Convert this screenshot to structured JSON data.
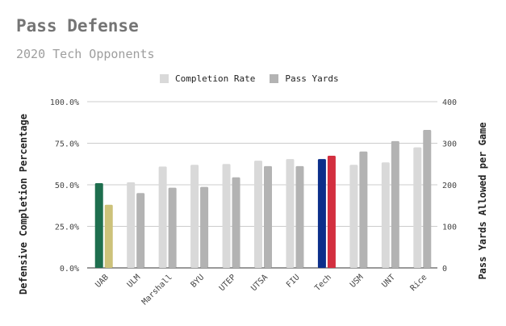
{
  "title": "Pass Defense",
  "subtitle": "2020 Tech Opponents",
  "chart_data": {
    "type": "bar",
    "categories": [
      "UAB",
      "ULM",
      "Marshall",
      "BYU",
      "UTEP",
      "UTSA",
      "FIU",
      "Tech",
      "USM",
      "UNT",
      "Rice"
    ],
    "series": [
      {
        "name": "Completion Rate",
        "axis": "left",
        "color": "#d9d9d9",
        "values": [
          0.51,
          0.515,
          0.61,
          0.62,
          0.625,
          0.645,
          0.655,
          0.655,
          0.62,
          0.635,
          0.725
        ]
      },
      {
        "name": "Pass Yards",
        "axis": "right",
        "color": "#b3b3b3",
        "values": [
          152,
          180,
          193,
          195,
          218,
          245,
          245,
          270,
          280,
          305,
          332
        ]
      }
    ],
    "highlight_colors": {
      "UAB": [
        "#1e6e4e",
        "#cdc27a"
      ],
      "Tech": [
        "#0c2e8a",
        "#d32f3f"
      ]
    },
    "ylabel": "Defensive Completion Percentage",
    "y2label": "Pass Yards Allowed per Game",
    "ylim": [
      0,
      1
    ],
    "y2lim": [
      0,
      400
    ],
    "yticks": [
      "0.0%",
      "25.0%",
      "50.0%",
      "75.0%",
      "100.0%"
    ],
    "y2ticks": [
      "0",
      "100",
      "200",
      "300",
      "400"
    ],
    "legend_position": "top",
    "grid": true
  }
}
